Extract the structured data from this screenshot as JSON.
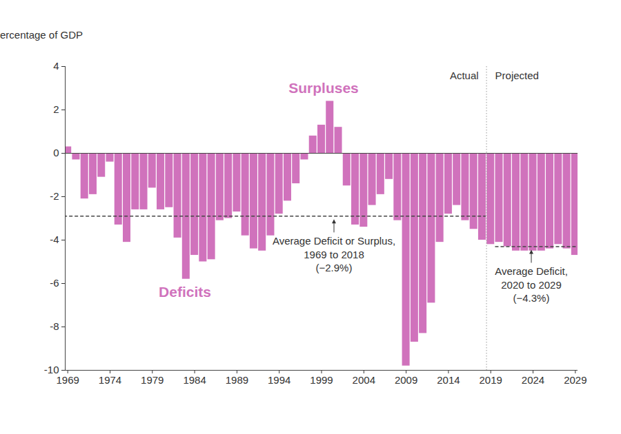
{
  "chart_data": {
    "type": "bar",
    "y_label": "Percentage of GDP",
    "x": [
      1969,
      1970,
      1971,
      1972,
      1973,
      1974,
      1975,
      1976,
      1977,
      1978,
      1979,
      1980,
      1981,
      1982,
      1983,
      1984,
      1985,
      1986,
      1987,
      1988,
      1989,
      1990,
      1991,
      1992,
      1993,
      1994,
      1995,
      1996,
      1997,
      1998,
      1999,
      2000,
      2001,
      2002,
      2003,
      2004,
      2005,
      2006,
      2007,
      2008,
      2009,
      2010,
      2011,
      2012,
      2013,
      2014,
      2015,
      2016,
      2017,
      2018,
      2019,
      2020,
      2021,
      2022,
      2023,
      2024,
      2025,
      2026,
      2027,
      2028,
      2029
    ],
    "values": [
      0.3,
      -0.3,
      -2.1,
      -1.9,
      -1.1,
      -0.4,
      -3.3,
      -4.1,
      -2.6,
      -2.6,
      -1.6,
      -2.6,
      -2.5,
      -3.9,
      -5.8,
      -4.7,
      -5.0,
      -4.9,
      -3.1,
      -3.0,
      -2.7,
      -3.8,
      -4.4,
      -4.5,
      -3.8,
      -2.8,
      -2.2,
      -1.4,
      -0.3,
      0.8,
      1.3,
      2.4,
      1.2,
      -1.5,
      -3.3,
      -3.4,
      -2.4,
      -1.9,
      -1.2,
      -3.1,
      -9.8,
      -8.7,
      -8.3,
      -6.9,
      -4.1,
      -2.8,
      -2.4,
      -3.1,
      -3.5,
      -4.0,
      -4.2,
      -4.1,
      -4.3,
      -4.5,
      -4.5,
      -4.5,
      -4.5,
      -4.4,
      -4.2,
      -4.4,
      -4.7
    ],
    "color": "#d072bc",
    "xlim": [
      1968.7,
      2029.3
    ],
    "xticks": [
      1969,
      1974,
      1979,
      1984,
      1989,
      1994,
      1999,
      2004,
      2009,
      2014,
      2019,
      2024,
      2029
    ],
    "ylim": [
      -10,
      4
    ],
    "yticks": [
      -10,
      -8,
      -6,
      -4,
      -2,
      0,
      2,
      4
    ],
    "grid": false,
    "annotations": [
      {
        "text": "Surpluses"
      },
      {
        "text": "Deficits"
      }
    ],
    "projection": {
      "start": 2019,
      "labels": [
        "Actual",
        "Projected"
      ]
    },
    "averages": [
      {
        "value": -2.9,
        "from": 1969,
        "to": 2018,
        "label": [
          "Average Deficit or Surplus,",
          "1969 to 2018",
          "(−2.9%)"
        ]
      },
      {
        "value": -4.3,
        "from": 2020,
        "to": 2029,
        "label": [
          "Average Deficit,",
          "2020 to 2029",
          "(−4.3%)"
        ]
      }
    ]
  }
}
